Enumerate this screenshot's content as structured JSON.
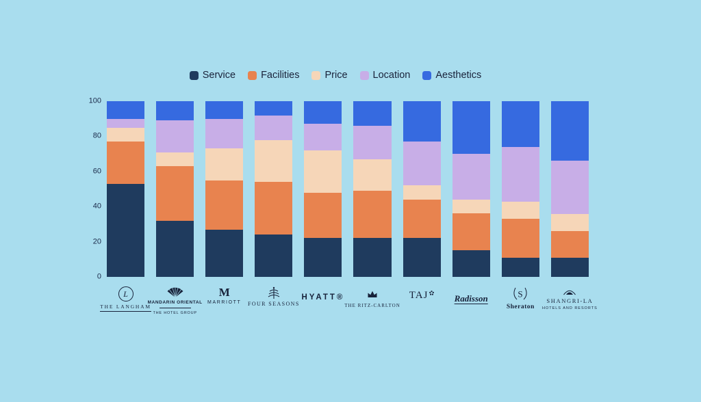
{
  "colors": {
    "background": "#a9ddee",
    "text": "#1b2a4a",
    "logo": "#17223a"
  },
  "chart_data": {
    "type": "bar",
    "stacked": true,
    "title": "",
    "xlabel": "",
    "ylabel": "",
    "ylim": [
      0,
      100
    ],
    "yticks": [
      0,
      20,
      40,
      60,
      80,
      100
    ],
    "grid": false,
    "legend_position": "top",
    "categories": [
      {
        "name": "The Langham",
        "monogram": "L",
        "logo_text": "THE LANGHAM"
      },
      {
        "name": "Mandarin Oriental",
        "logo_text": "MANDARIN ORIENTAL",
        "logo_subtext": "THE HOTEL GROUP"
      },
      {
        "name": "Marriott",
        "monogram": "M",
        "logo_text": "MARRIOTT"
      },
      {
        "name": "Four Seasons",
        "logo_text": "FOUR SEASONS"
      },
      {
        "name": "Hyatt",
        "logo_text": "HYATT®"
      },
      {
        "name": "The Ritz-Carlton",
        "logo_text": "THE RITZ-CARLTON"
      },
      {
        "name": "Taj",
        "logo_text": "TAJ"
      },
      {
        "name": "Radisson",
        "logo_text": "Radisson"
      },
      {
        "name": "Sheraton",
        "monogram": "S",
        "logo_text": "Sheraton"
      },
      {
        "name": "Shangri-La",
        "logo_text": "SHANGRI-LA",
        "logo_subtext": "HOTELS AND RESORTS"
      }
    ],
    "series": [
      {
        "name": "Service",
        "color": "#1f3b5e",
        "values": [
          53,
          32,
          27,
          24,
          22,
          22,
          22,
          15,
          11,
          11
        ]
      },
      {
        "name": "Facilities",
        "color": "#e8834f",
        "values": [
          24,
          31,
          28,
          30,
          26,
          27,
          22,
          21,
          22,
          15
        ]
      },
      {
        "name": "Price",
        "color": "#f6d6b8",
        "values": [
          8,
          8,
          18,
          24,
          24,
          18,
          8,
          8,
          10,
          10
        ]
      },
      {
        "name": "Location",
        "color": "#c8aee7",
        "values": [
          5,
          18,
          17,
          14,
          15,
          19,
          25,
          26,
          31,
          30
        ]
      },
      {
        "name": "Aesthetics",
        "color": "#366ae0",
        "values": [
          10,
          11,
          10,
          8,
          13,
          14,
          23,
          30,
          26,
          34
        ]
      }
    ]
  }
}
